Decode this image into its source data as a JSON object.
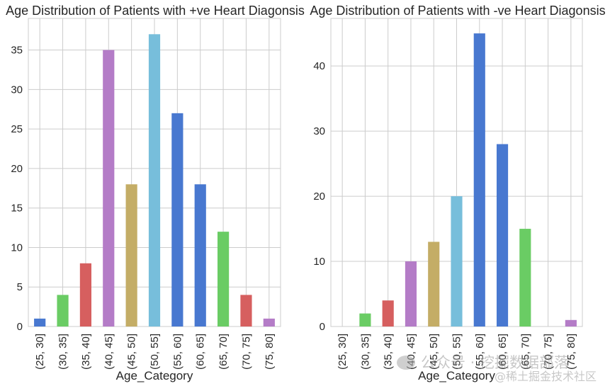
{
  "chart_data": [
    {
      "type": "bar",
      "title": "Age Distribution of Patients with +ve Heart Diagonsis",
      "xlabel": "Age_Category",
      "ylabel": "",
      "categories": [
        "(25, 30]",
        "(30, 35]",
        "(35, 40]",
        "(40, 45]",
        "(45, 50]",
        "(50, 55]",
        "(55, 60]",
        "(60, 65]",
        "(65, 70]",
        "(70, 75]",
        "(75, 80]"
      ],
      "values": [
        1,
        4,
        8,
        35,
        18,
        37,
        27,
        18,
        12,
        4,
        1
      ],
      "colors": [
        "#4878d0",
        "#6acc64",
        "#d65f5f",
        "#b47cc7",
        "#c4ad66",
        "#77bedb",
        "#4878d0",
        "#4878d0",
        "#6acc64",
        "#d65f5f",
        "#b47cc7"
      ],
      "ylim": [
        0,
        39
      ],
      "yticks": [
        0,
        5,
        10,
        15,
        20,
        25,
        30,
        35
      ],
      "grid": true
    },
    {
      "type": "bar",
      "title": "Age Distribution of Patients with -ve Heart Diagonsis",
      "xlabel": "Age_Category",
      "ylabel": "",
      "categories": [
        "(25, 30]",
        "(30, 35]",
        "(35, 40]",
        "(40, 45]",
        "(45, 50]",
        "(50, 55]",
        "(55, 60]",
        "(60, 65]",
        "(65, 70]",
        "(70, 75]",
        "(75, 80]"
      ],
      "values": [
        0,
        2,
        4,
        10,
        13,
        20,
        45,
        28,
        15,
        0,
        1
      ],
      "colors": [
        "#4878d0",
        "#6acc64",
        "#d65f5f",
        "#b47cc7",
        "#c4ad66",
        "#77bedb",
        "#4878d0",
        "#4878d0",
        "#6acc64",
        "#d65f5f",
        "#b47cc7"
      ],
      "ylim": [
        0,
        47.3
      ],
      "yticks": [
        0,
        10,
        20,
        30,
        40
      ],
      "grid": true
    }
  ],
  "watermark": {
    "line1": "公众号 · 挖掘数据部落",
    "line2": "@稀土掘金技术社区"
  }
}
